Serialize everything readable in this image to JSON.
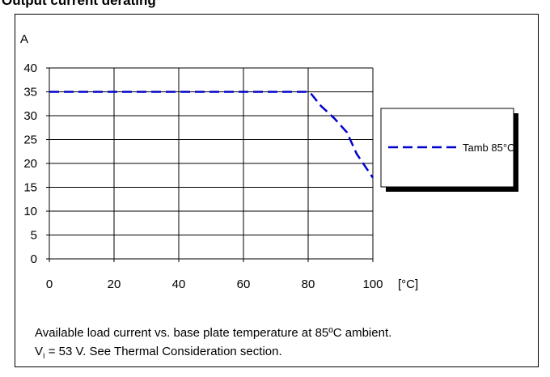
{
  "header": {
    "title_fragment": "Output current derating"
  },
  "chart_data": {
    "type": "line",
    "title": "",
    "xlabel": "",
    "x_unit": "[°C]",
    "ylabel": "A",
    "xlim": [
      0,
      100
    ],
    "ylim": [
      0,
      40
    ],
    "xticks": [
      0,
      20,
      40,
      60,
      80,
      100
    ],
    "yticks": [
      0,
      5,
      10,
      15,
      20,
      25,
      30,
      35,
      40
    ],
    "grid": true,
    "legend_position": "right",
    "series": [
      {
        "name": "Tamb 85°C",
        "color": "#0000cc",
        "line_style": "dashed",
        "x": [
          0,
          80,
          81,
          84,
          88,
          92,
          95,
          98,
          100
        ],
        "y": [
          35,
          35,
          34.5,
          32,
          29.5,
          26.5,
          22,
          19,
          17
        ]
      }
    ]
  },
  "caption": {
    "line1": "Available load current vs. base plate temperature at 85ºC ambient.",
    "line2_prefix": "V",
    "line2_sub": "I",
    "line2_rest": " = 53 V. See Thermal Consideration section."
  }
}
